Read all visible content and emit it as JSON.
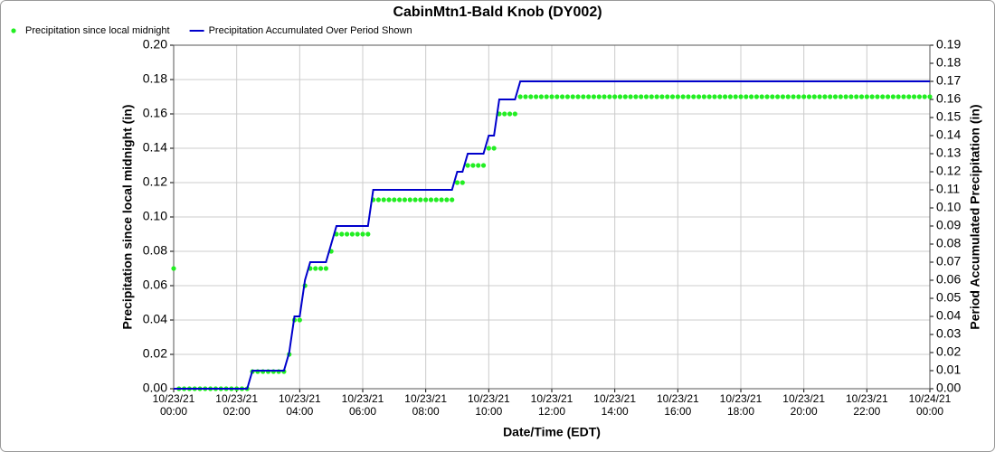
{
  "chart_data": {
    "type": "line",
    "title": "CabinMtn1-Bald Knob (DY002)",
    "x_label": "Date/Time (EDT)",
    "y_label": "Precipitation since local midnight (in)",
    "y2_label": "Period Accumulated Precipitation (in)",
    "grid": true,
    "xlim": [
      0,
      1440
    ],
    "xticks": [
      {
        "value": 0,
        "label": "10/23/21\n00:00"
      },
      {
        "value": 120,
        "label": "10/23/21\n02:00"
      },
      {
        "value": 240,
        "label": "10/23/21\n04:00"
      },
      {
        "value": 360,
        "label": "10/23/21\n06:00"
      },
      {
        "value": 480,
        "label": "10/23/21\n08:00"
      },
      {
        "value": 600,
        "label": "10/23/21\n10:00"
      },
      {
        "value": 720,
        "label": "10/23/21\n12:00"
      },
      {
        "value": 840,
        "label": "10/23/21\n14:00"
      },
      {
        "value": 960,
        "label": "10/23/21\n16:00"
      },
      {
        "value": 1080,
        "label": "10/23/21\n18:00"
      },
      {
        "value": 1200,
        "label": "10/23/21\n20:00"
      },
      {
        "value": 1320,
        "label": "10/23/21\n22:00"
      },
      {
        "value": 1440,
        "label": "10/24/21\n00:00"
      }
    ],
    "ylim": [
      0,
      0.2
    ],
    "yticks": [
      {
        "value": 0,
        "label": "0.00"
      },
      0.02,
      0.04,
      0.06,
      0.08,
      {
        "value": 0.1,
        "label": "0.10"
      },
      0.12,
      0.14,
      0.16,
      0.18,
      {
        "value": 0.2,
        "label": "0.20"
      }
    ],
    "y2lim": [
      0,
      0.19
    ],
    "y2ticks": [
      {
        "value": 0,
        "label": "0.00"
      },
      0.01,
      0.02,
      0.03,
      0.04,
      0.05,
      0.06,
      0.07,
      0.08,
      0.09,
      {
        "value": 0.1,
        "label": "0.10"
      },
      0.11,
      0.12,
      0.13,
      0.14,
      0.15,
      0.16,
      0.17,
      0.18,
      0.19
    ],
    "x": [
      0,
      10,
      20,
      30,
      40,
      50,
      60,
      70,
      80,
      90,
      100,
      110,
      120,
      130,
      140,
      150,
      160,
      170,
      180,
      190,
      200,
      210,
      220,
      230,
      240,
      250,
      260,
      270,
      280,
      290,
      300,
      310,
      320,
      330,
      340,
      350,
      360,
      370,
      380,
      390,
      400,
      410,
      420,
      430,
      440,
      450,
      460,
      470,
      480,
      490,
      500,
      510,
      520,
      530,
      540,
      550,
      560,
      570,
      580,
      590,
      600,
      610,
      620,
      630,
      640,
      650,
      660,
      670,
      680,
      690,
      700,
      710,
      720,
      730,
      740,
      750,
      760,
      770,
      780,
      790,
      800,
      810,
      820,
      830,
      840,
      850,
      860,
      870,
      880,
      890,
      900,
      910,
      920,
      930,
      940,
      950,
      960,
      970,
      980,
      990,
      1000,
      1010,
      1020,
      1030,
      1040,
      1050,
      1060,
      1070,
      1080,
      1090,
      1100,
      1110,
      1120,
      1130,
      1140,
      1150,
      1160,
      1170,
      1180,
      1190,
      1200,
      1210,
      1220,
      1230,
      1240,
      1250,
      1260,
      1270,
      1280,
      1290,
      1300,
      1310,
      1320,
      1330,
      1340,
      1350,
      1360,
      1370,
      1380,
      1390,
      1400,
      1410,
      1420,
      1430,
      1440
    ],
    "series": [
      {
        "name": "Precipitation since local midnight",
        "color": "#22ee22",
        "style": "markers",
        "values": [
          0.07,
          0,
          0,
          0,
          0,
          0,
          0,
          0,
          0,
          0,
          0,
          0,
          0,
          0,
          0,
          0.01,
          0.01,
          0.01,
          0.01,
          0.01,
          0.01,
          0.01,
          0.02,
          0.04,
          0.04,
          0.06,
          0.07,
          0.07,
          0.07,
          0.07,
          0.08,
          0.09,
          0.09,
          0.09,
          0.09,
          0.09,
          0.09,
          0.09,
          0.11,
          0.11,
          0.11,
          0.11,
          0.11,
          0.11,
          0.11,
          0.11,
          0.11,
          0.11,
          0.11,
          0.11,
          0.11,
          0.11,
          0.11,
          0.11,
          0.12,
          0.12,
          0.13,
          0.13,
          0.13,
          0.13,
          0.14,
          0.14,
          0.16,
          0.16,
          0.16,
          0.16,
          0.17,
          0.17,
          0.17,
          0.17,
          0.17,
          0.17,
          0.17,
          0.17,
          0.17,
          0.17,
          0.17,
          0.17,
          0.17,
          0.17,
          0.17,
          0.17,
          0.17,
          0.17,
          0.17,
          0.17,
          0.17,
          0.17,
          0.17,
          0.17,
          0.17,
          0.17,
          0.17,
          0.17,
          0.17,
          0.17,
          0.17,
          0.17,
          0.17,
          0.17,
          0.17,
          0.17,
          0.17,
          0.17,
          0.17,
          0.17,
          0.17,
          0.17,
          0.17,
          0.17,
          0.17,
          0.17,
          0.17,
          0.17,
          0.17,
          0.17,
          0.17,
          0.17,
          0.17,
          0.17,
          0.17,
          0.17,
          0.17,
          0.17,
          0.17,
          0.17,
          0.17,
          0.17,
          0.17,
          0.17,
          0.17,
          0.17,
          0.17,
          0.17,
          0.17,
          0.17,
          0.17,
          0.17,
          0.17,
          0.17,
          0.17,
          0.17,
          0.17,
          0.17,
          0.17
        ]
      },
      {
        "name": "Precipitation Accumulated Over Period Shown",
        "color": "#0000cc",
        "style": "line",
        "axis": "y2",
        "values": [
          0,
          0,
          0,
          0,
          0,
          0,
          0,
          0,
          0,
          0,
          0,
          0,
          0,
          0,
          0,
          0.01,
          0.01,
          0.01,
          0.01,
          0.01,
          0.01,
          0.01,
          0.02,
          0.04,
          0.04,
          0.06,
          0.07,
          0.07,
          0.07,
          0.07,
          0.08,
          0.09,
          0.09,
          0.09,
          0.09,
          0.09,
          0.09,
          0.09,
          0.11,
          0.11,
          0.11,
          0.11,
          0.11,
          0.11,
          0.11,
          0.11,
          0.11,
          0.11,
          0.11,
          0.11,
          0.11,
          0.11,
          0.11,
          0.11,
          0.12,
          0.12,
          0.13,
          0.13,
          0.13,
          0.13,
          0.14,
          0.14,
          0.16,
          0.16,
          0.16,
          0.16,
          0.17,
          0.17,
          0.17,
          0.17,
          0.17,
          0.17,
          0.17,
          0.17,
          0.17,
          0.17,
          0.17,
          0.17,
          0.17,
          0.17,
          0.17,
          0.17,
          0.17,
          0.17,
          0.17,
          0.17,
          0.17,
          0.17,
          0.17,
          0.17,
          0.17,
          0.17,
          0.17,
          0.17,
          0.17,
          0.17,
          0.17,
          0.17,
          0.17,
          0.17,
          0.17,
          0.17,
          0.17,
          0.17,
          0.17,
          0.17,
          0.17,
          0.17,
          0.17,
          0.17,
          0.17,
          0.17,
          0.17,
          0.17,
          0.17,
          0.17,
          0.17,
          0.17,
          0.17,
          0.17,
          0.17,
          0.17,
          0.17,
          0.17,
          0.17,
          0.17,
          0.17,
          0.17,
          0.17,
          0.17,
          0.17,
          0.17,
          0.17,
          0.17,
          0.17,
          0.17,
          0.17,
          0.17,
          0.17,
          0.17,
          0.17,
          0.17,
          0.17,
          0.17,
          0.17
        ]
      }
    ]
  }
}
